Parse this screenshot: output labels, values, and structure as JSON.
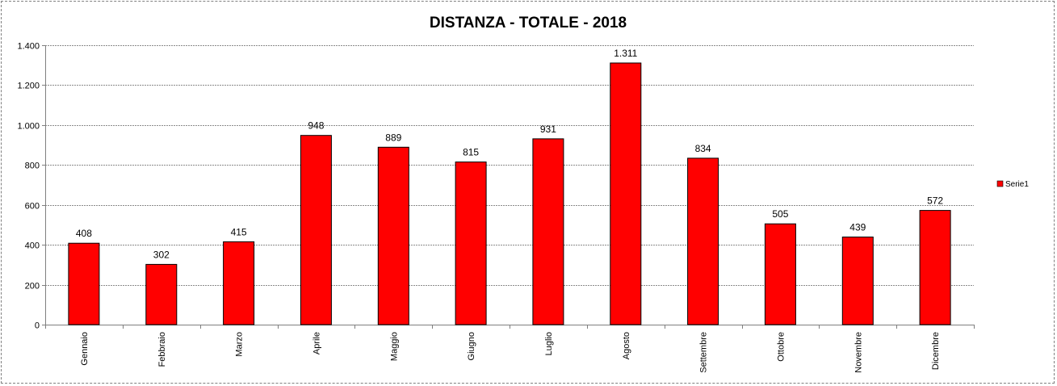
{
  "chart_data": {
    "type": "bar",
    "title": "DISTANZA - TOTALE - 2018",
    "xlabel": "",
    "ylabel": "",
    "ylim": [
      0,
      1400
    ],
    "yticks": [
      0,
      200,
      400,
      600,
      800,
      1000,
      1200,
      1400
    ],
    "ytick_labels": [
      "0",
      "200",
      "400",
      "600",
      "800",
      "1.000",
      "1.200",
      "1.400"
    ],
    "categories": [
      "Gennaio",
      "Febbraio",
      "Marzo",
      "Aprile",
      "Maggio",
      "Giugno",
      "Luglio",
      "Agosto",
      "Settembre",
      "Ottobre",
      "Novembre",
      "Dicembre"
    ],
    "series": [
      {
        "name": "Serie1",
        "color": "#ff0000",
        "values": [
          408,
          302,
          415,
          948,
          889,
          815,
          931,
          1311,
          834,
          505,
          439,
          572
        ],
        "data_labels": [
          "408",
          "302",
          "415",
          "948",
          "889",
          "815",
          "931",
          "1.311",
          "834",
          "505",
          "439",
          "572"
        ]
      }
    ],
    "grid": true,
    "legend_position": "right"
  }
}
